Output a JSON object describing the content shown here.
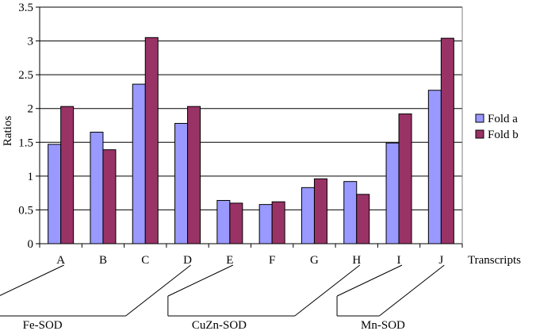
{
  "chart_data": {
    "type": "bar",
    "categories": [
      "A",
      "B",
      "C",
      "D",
      "E",
      "F",
      "G",
      "H",
      "I",
      "J"
    ],
    "series": [
      {
        "name": "Fold a",
        "values": [
          1.47,
          1.65,
          2.36,
          1.78,
          0.64,
          0.58,
          0.83,
          0.92,
          1.49,
          2.27
        ]
      },
      {
        "name": "Fold b",
        "values": [
          2.03,
          1.39,
          3.05,
          2.03,
          0.6,
          0.62,
          0.96,
          0.73,
          1.92,
          3.04
        ]
      }
    ],
    "colors": {
      "Fold a": "#9999ff",
      "Fold b": "#993366"
    },
    "ylabel": "Ratios",
    "xlabel": "Transcripts",
    "ylim": [
      0,
      3.5
    ],
    "yticks": [
      "0",
      "0.5",
      "1",
      "1.5",
      "2",
      "2.5",
      "3",
      "3.5"
    ],
    "grid": true,
    "legend": "right",
    "groups": [
      {
        "label": "Fe-SOD",
        "members": [
          "A",
          "B",
          "C",
          "D"
        ]
      },
      {
        "label": "CuZn-SOD",
        "members": [
          "E",
          "F",
          "G",
          "H"
        ]
      },
      {
        "label": "Mn-SOD",
        "members": [
          "I",
          "J"
        ]
      }
    ]
  }
}
